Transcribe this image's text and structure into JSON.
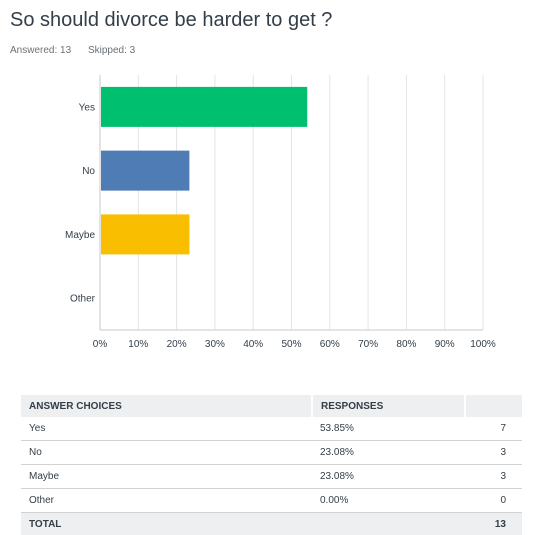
{
  "question": {
    "title": "So should divorce be harder to get ?",
    "answered_label": "Answered: 13",
    "skipped_label": "Skipped: 3"
  },
  "chart_data": {
    "type": "bar",
    "orientation": "horizontal",
    "categories": [
      "Yes",
      "No",
      "Maybe",
      "Other"
    ],
    "values": [
      53.85,
      23.08,
      23.08,
      0.0
    ],
    "colors": [
      "#00bf6f",
      "#507cb6",
      "#f9be00",
      "#6bc8cd"
    ],
    "xlim": [
      0,
      100
    ],
    "xticks": [
      "0%",
      "10%",
      "20%",
      "30%",
      "40%",
      "50%",
      "60%",
      "70%",
      "80%",
      "90%",
      "100%"
    ],
    "grid": true
  },
  "table": {
    "headers": [
      "ANSWER CHOICES",
      "RESPONSES",
      ""
    ],
    "rows": [
      {
        "choice": "Yes",
        "percent": "53.85%",
        "count": "7"
      },
      {
        "choice": "No",
        "percent": "23.08%",
        "count": "3"
      },
      {
        "choice": "Maybe",
        "percent": "23.08%",
        "count": "3"
      },
      {
        "choice": "Other",
        "percent": "0.00%",
        "count": "0"
      }
    ],
    "total_label": "TOTAL",
    "total_count": "13"
  }
}
